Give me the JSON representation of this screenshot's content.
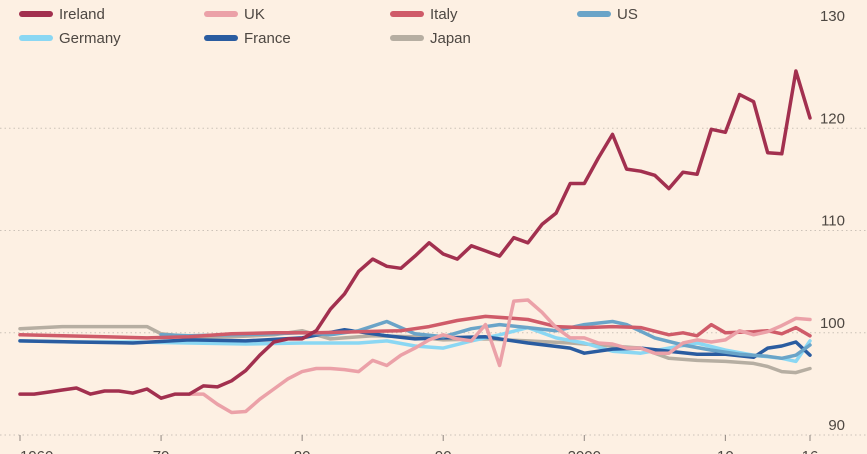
{
  "chart_data": {
    "type": "line",
    "title": "",
    "xlabel": "",
    "ylabel": "",
    "xlim": [
      1960,
      2016
    ],
    "ylim": [
      90,
      130
    ],
    "y_ticks": [
      90,
      100,
      110,
      120,
      130
    ],
    "x_ticks": [
      1960,
      1970,
      1980,
      1990,
      2000,
      2010,
      2016
    ],
    "x_tick_labels": [
      "1960",
      "70",
      "80",
      "90",
      "2000",
      "10",
      "16"
    ],
    "grid": true,
    "legend_position": "top",
    "series": [
      {
        "name": "Ireland",
        "color": "#a2304f",
        "values": [
          [
            1960,
            94.0
          ],
          [
            1961,
            94.0
          ],
          [
            1962,
            94.2
          ],
          [
            1963,
            94.4
          ],
          [
            1964,
            94.6
          ],
          [
            1965,
            94.0
          ],
          [
            1966,
            94.3
          ],
          [
            1967,
            94.3
          ],
          [
            1968,
            94.1
          ],
          [
            1969,
            94.5
          ],
          [
            1970,
            93.6
          ],
          [
            1971,
            94.0
          ],
          [
            1972,
            94.0
          ],
          [
            1973,
            94.8
          ],
          [
            1974,
            94.7
          ],
          [
            1975,
            95.3
          ],
          [
            1976,
            96.3
          ],
          [
            1977,
            97.8
          ],
          [
            1978,
            99.1
          ],
          [
            1979,
            99.4
          ],
          [
            1980,
            99.4
          ],
          [
            1981,
            100.2
          ],
          [
            1982,
            102.3
          ],
          [
            1983,
            103.8
          ],
          [
            1984,
            106.0
          ],
          [
            1985,
            107.2
          ],
          [
            1986,
            106.5
          ],
          [
            1987,
            106.3
          ],
          [
            1988,
            107.5
          ],
          [
            1989,
            108.8
          ],
          [
            1990,
            107.7
          ],
          [
            1991,
            107.2
          ],
          [
            1992,
            108.5
          ],
          [
            1993,
            108.0
          ],
          [
            1994,
            107.5
          ],
          [
            1995,
            109.3
          ],
          [
            1996,
            108.8
          ],
          [
            1997,
            110.6
          ],
          [
            1998,
            111.7
          ],
          [
            1999,
            114.6
          ],
          [
            2000,
            114.6
          ],
          [
            2001,
            117.1
          ],
          [
            2002,
            119.4
          ],
          [
            2003,
            116.0
          ],
          [
            2004,
            115.8
          ],
          [
            2005,
            115.4
          ],
          [
            2006,
            114.1
          ],
          [
            2007,
            115.7
          ],
          [
            2008,
            115.5
          ],
          [
            2009,
            119.9
          ],
          [
            2010,
            119.6
          ],
          [
            2011,
            123.3
          ],
          [
            2012,
            122.6
          ],
          [
            2013,
            117.6
          ],
          [
            2014,
            117.5
          ],
          [
            2015,
            125.6
          ],
          [
            2016,
            121.0
          ]
        ]
      },
      {
        "name": "UK",
        "color": "#eba1a8",
        "values": [
          [
            1972,
            94.0
          ],
          [
            1973,
            94.0
          ],
          [
            1974,
            93.0
          ],
          [
            1975,
            92.2
          ],
          [
            1976,
            92.3
          ],
          [
            1977,
            93.5
          ],
          [
            1978,
            94.5
          ],
          [
            1979,
            95.5
          ],
          [
            1980,
            96.2
          ],
          [
            1981,
            96.5
          ],
          [
            1982,
            96.5
          ],
          [
            1983,
            96.4
          ],
          [
            1984,
            96.2
          ],
          [
            1985,
            97.3
          ],
          [
            1986,
            96.8
          ],
          [
            1987,
            97.8
          ],
          [
            1988,
            98.5
          ],
          [
            1989,
            99.3
          ],
          [
            1990,
            99.8
          ],
          [
            1991,
            99.4
          ],
          [
            1992,
            99.2
          ],
          [
            1993,
            100.8
          ],
          [
            1994,
            96.8
          ],
          [
            1995,
            103.1
          ],
          [
            1996,
            103.2
          ],
          [
            1997,
            102.0
          ],
          [
            1998,
            100.5
          ],
          [
            1999,
            99.5
          ],
          [
            2000,
            99.5
          ],
          [
            2001,
            99.0
          ],
          [
            2002,
            98.9
          ],
          [
            2003,
            98.5
          ],
          [
            2004,
            98.5
          ],
          [
            2005,
            98.0
          ],
          [
            2006,
            98.0
          ],
          [
            2007,
            99.0
          ],
          [
            2008,
            99.3
          ],
          [
            2009,
            99.1
          ],
          [
            2010,
            99.3
          ],
          [
            2011,
            100.2
          ],
          [
            2012,
            99.8
          ],
          [
            2013,
            100.1
          ],
          [
            2014,
            100.7
          ],
          [
            2015,
            101.4
          ],
          [
            2016,
            101.3
          ]
        ]
      },
      {
        "name": "Italy",
        "color": "#cf5b69",
        "values": [
          [
            1960,
            99.8
          ],
          [
            1963,
            99.7
          ],
          [
            1966,
            99.6
          ],
          [
            1969,
            99.5
          ],
          [
            1972,
            99.6
          ],
          [
            1975,
            99.9
          ],
          [
            1978,
            100.0
          ],
          [
            1981,
            100.0
          ],
          [
            1984,
            100.1
          ],
          [
            1987,
            100.2
          ],
          [
            1989,
            100.6
          ],
          [
            1991,
            101.2
          ],
          [
            1993,
            101.6
          ],
          [
            1995,
            101.4
          ],
          [
            1996,
            101.3
          ],
          [
            1998,
            100.6
          ],
          [
            2000,
            100.5
          ],
          [
            2002,
            100.6
          ],
          [
            2004,
            100.5
          ],
          [
            2006,
            99.8
          ],
          [
            2007,
            100.0
          ],
          [
            2008,
            99.7
          ],
          [
            2009,
            100.8
          ],
          [
            2010,
            100.0
          ],
          [
            2012,
            100.1
          ],
          [
            2013,
            100.2
          ],
          [
            2014,
            99.9
          ],
          [
            2015,
            100.5
          ],
          [
            2016,
            99.7
          ]
        ]
      },
      {
        "name": "US",
        "color": "#6aa4c8",
        "values": [
          [
            1970,
            99.8
          ],
          [
            1972,
            99.7
          ],
          [
            1975,
            99.8
          ],
          [
            1978,
            99.9
          ],
          [
            1980,
            100.0
          ],
          [
            1982,
            99.8
          ],
          [
            1984,
            100.2
          ],
          [
            1986,
            101.1
          ],
          [
            1988,
            99.9
          ],
          [
            1990,
            99.6
          ],
          [
            1992,
            100.4
          ],
          [
            1994,
            100.8
          ],
          [
            1996,
            100.5
          ],
          [
            1998,
            100.2
          ],
          [
            2000,
            100.8
          ],
          [
            2002,
            101.1
          ],
          [
            2003,
            100.8
          ],
          [
            2005,
            99.5
          ],
          [
            2007,
            98.8
          ],
          [
            2009,
            98.3
          ],
          [
            2011,
            97.9
          ],
          [
            2013,
            97.7
          ],
          [
            2014,
            97.5
          ],
          [
            2015,
            97.8
          ],
          [
            2016,
            98.8
          ]
        ]
      },
      {
        "name": "Germany",
        "color": "#8ad7f3",
        "values": [
          [
            1960,
            99.2
          ],
          [
            1964,
            99.1
          ],
          [
            1968,
            99.1
          ],
          [
            1972,
            99.0
          ],
          [
            1976,
            98.9
          ],
          [
            1980,
            99.0
          ],
          [
            1984,
            99.0
          ],
          [
            1986,
            99.2
          ],
          [
            1988,
            98.7
          ],
          [
            1990,
            98.5
          ],
          [
            1992,
            99.2
          ],
          [
            1994,
            99.8
          ],
          [
            1996,
            100.5
          ],
          [
            1998,
            99.5
          ],
          [
            2000,
            99.0
          ],
          [
            2002,
            98.2
          ],
          [
            2004,
            98.0
          ],
          [
            2006,
            98.5
          ],
          [
            2008,
            99.0
          ],
          [
            2010,
            98.3
          ],
          [
            2012,
            97.8
          ],
          [
            2014,
            97.5
          ],
          [
            2015,
            97.2
          ],
          [
            2016,
            99.2
          ]
        ]
      },
      {
        "name": "France",
        "color": "#2a5ca0",
        "values": [
          [
            1960,
            99.2
          ],
          [
            1964,
            99.1
          ],
          [
            1968,
            99.0
          ],
          [
            1972,
            99.3
          ],
          [
            1976,
            99.2
          ],
          [
            1980,
            99.5
          ],
          [
            1983,
            100.3
          ],
          [
            1986,
            99.7
          ],
          [
            1988,
            99.4
          ],
          [
            1990,
            99.5
          ],
          [
            1993,
            99.6
          ],
          [
            1996,
            99.0
          ],
          [
            1999,
            98.5
          ],
          [
            2000,
            98.0
          ],
          [
            2002,
            98.4
          ],
          [
            2004,
            98.5
          ],
          [
            2006,
            98.2
          ],
          [
            2008,
            97.9
          ],
          [
            2010,
            97.9
          ],
          [
            2012,
            97.6
          ],
          [
            2013,
            98.5
          ],
          [
            2014,
            98.7
          ],
          [
            2015,
            99.1
          ],
          [
            2016,
            97.8
          ]
        ]
      },
      {
        "name": "Japan",
        "color": "#b6aea2",
        "values": [
          [
            1960,
            100.4
          ],
          [
            1963,
            100.6
          ],
          [
            1966,
            100.6
          ],
          [
            1969,
            100.6
          ],
          [
            1970,
            99.9
          ],
          [
            1972,
            99.6
          ],
          [
            1975,
            99.6
          ],
          [
            1978,
            99.8
          ],
          [
            1980,
            100.2
          ],
          [
            1982,
            99.4
          ],
          [
            1985,
            99.7
          ],
          [
            1988,
            99.6
          ],
          [
            1990,
            99.3
          ],
          [
            1993,
            99.4
          ],
          [
            1996,
            99.2
          ],
          [
            1999,
            99.0
          ],
          [
            2001,
            98.8
          ],
          [
            2004,
            98.5
          ],
          [
            2006,
            97.5
          ],
          [
            2008,
            97.3
          ],
          [
            2010,
            97.2
          ],
          [
            2012,
            97.0
          ],
          [
            2013,
            96.7
          ],
          [
            2014,
            96.2
          ],
          [
            2015,
            96.1
          ],
          [
            2016,
            96.5
          ]
        ]
      }
    ]
  }
}
